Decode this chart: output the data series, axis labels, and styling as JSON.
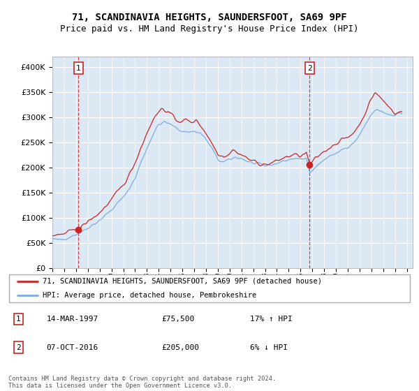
{
  "title": "71, SCANDINAVIA HEIGHTS, SAUNDERSFOOT, SA69 9PF",
  "subtitle": "Price paid vs. HM Land Registry's House Price Index (HPI)",
  "legend_line1": "71, SCANDINAVIA HEIGHTS, SAUNDERSFOOT, SA69 9PF (detached house)",
  "legend_line2": "HPI: Average price, detached house, Pembrokeshire",
  "footnote1": "Contains HM Land Registry data © Crown copyright and database right 2024.",
  "footnote2": "This data is licensed under the Open Government Licence v3.0.",
  "sale1_label": "1",
  "sale1_date": "14-MAR-1997",
  "sale1_price": "£75,500",
  "sale1_hpi": "17% ↑ HPI",
  "sale2_label": "2",
  "sale2_date": "07-OCT-2016",
  "sale2_price": "£205,000",
  "sale2_hpi": "6% ↓ HPI",
  "sale1_year": 1997.2,
  "sale1_value": 75500,
  "sale2_year": 2016.77,
  "sale2_value": 205000,
  "hpi_color": "#7aaddc",
  "price_color": "#cc2222",
  "marker_color": "#cc2222",
  "dashed_color": "#cc4444",
  "plot_bg": "#dce9f5",
  "ylim": [
    0,
    420000
  ],
  "xlim_start": 1995,
  "xlim_end": 2025.5,
  "yticks": [
    0,
    50000,
    100000,
    150000,
    200000,
    250000,
    300000,
    350000,
    400000
  ],
  "xticks": [
    1995,
    1996,
    1997,
    1998,
    1999,
    2000,
    2001,
    2002,
    2003,
    2004,
    2005,
    2006,
    2007,
    2008,
    2009,
    2010,
    2011,
    2012,
    2013,
    2014,
    2015,
    2016,
    2017,
    2018,
    2019,
    2020,
    2021,
    2022,
    2023,
    2024,
    2025
  ]
}
